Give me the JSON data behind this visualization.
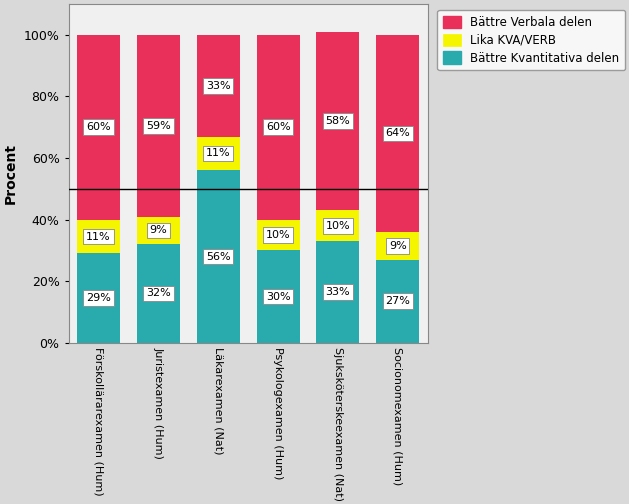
{
  "categories": [
    "Förskollärarexamen (Hum)",
    "Juristexamen (Hum)",
    "Läkarexamen (Nat)",
    "Psykologexamen (Hum)",
    "Sjuksköterskeexamen (Nat)",
    "Socionomexamen (Hum)"
  ],
  "kvantitativa": [
    29,
    32,
    56,
    30,
    33,
    27
  ],
  "lika": [
    11,
    9,
    11,
    10,
    10,
    9
  ],
  "verbala": [
    60,
    59,
    33,
    60,
    58,
    64
  ],
  "color_kvantitativa": "#29AAAD",
  "color_lika": "#F5F500",
  "color_verbala": "#E8305A",
  "ylabel": "Procent",
  "yticks": [
    0,
    20,
    40,
    60,
    80,
    100
  ],
  "ytick_labels": [
    "0%",
    "20%",
    "40%",
    "60%",
    "80%",
    "100%"
  ],
  "hline_y": 50,
  "legend_labels": [
    "Bättre Verbala delen",
    "Lika KVA/VERB",
    "Bättre Kvantitativa delen"
  ],
  "outer_bg_color": "#D9D9D9",
  "plot_bg_color": "#F0F0F0",
  "label_fontsize": 8,
  "bar_width": 0.72
}
